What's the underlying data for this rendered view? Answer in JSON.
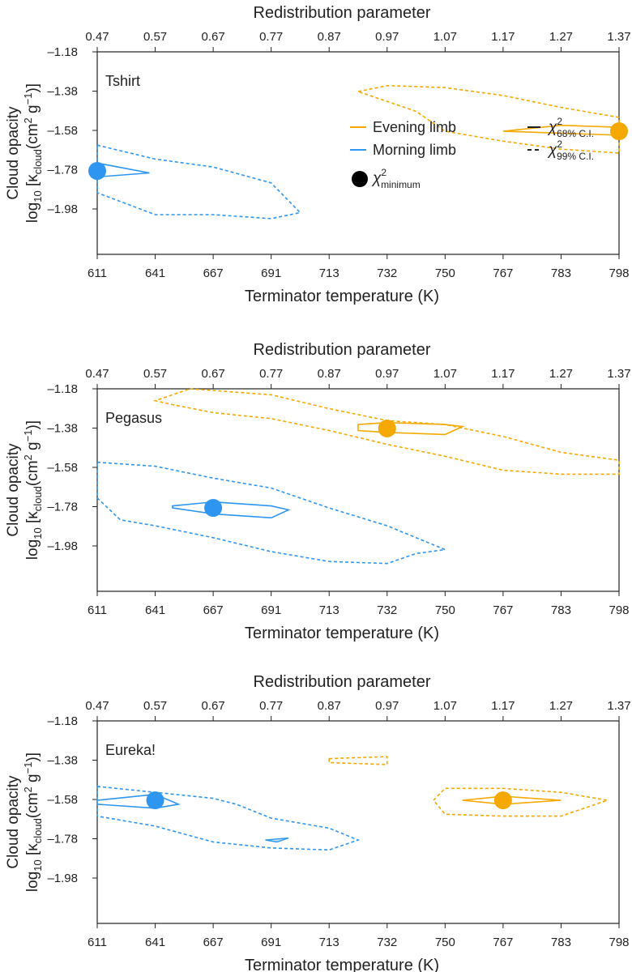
{
  "shared": {
    "top_axis_label": "Redistribution parameter",
    "top_ticks": [
      "0.47",
      "0.57",
      "0.67",
      "0.77",
      "0.87",
      "0.97",
      "1.07",
      "1.17",
      "1.27",
      "1.37"
    ],
    "bottom_axis_label": "Terminator temperature (K)",
    "bottom_ticks": [
      "611",
      "641",
      "667",
      "691",
      "713",
      "732",
      "750",
      "767",
      "783",
      "798"
    ],
    "y_ticks": [
      "-1.18",
      "-1.38",
      "-1.58",
      "-1.78",
      "-1.98"
    ],
    "y_label_line1": "Cloud opacity",
    "y_label_line2_prefix": "log",
    "y_label_line2_sub": "10",
    "y_label_line2_rest": "[κ",
    "y_label_cloud_sub": "cloud",
    "y_label_units": "(cm",
    "y_label_units_sup": "2",
    "y_label_units_g": " g",
    "y_label_units_sup2": "−1",
    "y_label_close": ")]"
  },
  "legend": {
    "evening": "Evening limb",
    "morning": "Morning limb",
    "minimum_symbol": "χ",
    "minimum_sup": "2",
    "minimum_sub": "minimum",
    "ci68_symbol": "χ",
    "ci68_sup": "2",
    "ci68_sub": "68% C.I.",
    "ci99_symbol": "χ",
    "ci99_sup": "2",
    "ci99_sub": "99% C.I."
  },
  "colors": {
    "evening": "#F5A800",
    "morning": "#2E96F0",
    "axis": "#222222"
  },
  "chart_data": [
    {
      "type": "contour",
      "title": "Tshirt",
      "x_range": [
        0.47,
        1.37
      ],
      "y_range": [
        -2.2,
        -1.18
      ],
      "evening": {
        "minimum": [
          1.37,
          -1.58
        ],
        "ci68": [
          [
            1.37,
            -1.56
          ],
          [
            1.27,
            -1.55
          ],
          [
            1.17,
            -1.58
          ],
          [
            1.37,
            -1.6
          ]
        ],
        "ci99": [
          [
            0.92,
            -1.38
          ],
          [
            0.97,
            -1.35
          ],
          [
            1.07,
            -1.36
          ],
          [
            1.17,
            -1.4
          ],
          [
            1.27,
            -1.46
          ],
          [
            1.37,
            -1.51
          ],
          [
            1.37,
            -1.69
          ],
          [
            1.27,
            -1.67
          ],
          [
            1.17,
            -1.63
          ],
          [
            1.07,
            -1.58
          ],
          [
            1.02,
            -1.48
          ]
        ]
      },
      "morning": {
        "minimum": [
          0.47,
          -1.78
        ],
        "ci68": [
          [
            0.47,
            -1.74
          ],
          [
            0.56,
            -1.79
          ],
          [
            0.47,
            -1.81
          ]
        ],
        "ci99": [
          [
            0.47,
            -1.65
          ],
          [
            0.57,
            -1.72
          ],
          [
            0.67,
            -1.76
          ],
          [
            0.77,
            -1.84
          ],
          [
            0.82,
            -1.99
          ],
          [
            0.77,
            -2.02
          ],
          [
            0.67,
            -2.0
          ],
          [
            0.57,
            -2.0
          ],
          [
            0.47,
            -1.89
          ]
        ]
      }
    },
    {
      "type": "contour",
      "title": "Pegasus",
      "x_range": [
        0.47,
        1.37
      ],
      "y_range": [
        -2.2,
        -1.18
      ],
      "evening": {
        "minimum": [
          0.97,
          -1.38
        ],
        "ci68": [
          [
            0.92,
            -1.36
          ],
          [
            0.97,
            -1.35
          ],
          [
            1.07,
            -1.36
          ],
          [
            1.1,
            -1.37
          ],
          [
            1.07,
            -1.41
          ],
          [
            0.97,
            -1.4
          ],
          [
            0.92,
            -1.39
          ]
        ],
        "ci99": [
          [
            0.63,
            -1.18
          ],
          [
            0.77,
            -1.21
          ],
          [
            0.87,
            -1.28
          ],
          [
            0.97,
            -1.34
          ],
          [
            1.07,
            -1.36
          ],
          [
            1.17,
            -1.42
          ],
          [
            1.27,
            -1.5
          ],
          [
            1.37,
            -1.54
          ],
          [
            1.37,
            -1.61
          ],
          [
            1.27,
            -1.61
          ],
          [
            1.17,
            -1.59
          ],
          [
            1.07,
            -1.52
          ],
          [
            0.97,
            -1.46
          ],
          [
            0.87,
            -1.39
          ],
          [
            0.77,
            -1.33
          ],
          [
            0.67,
            -1.3
          ],
          [
            0.6,
            -1.26
          ],
          [
            0.57,
            -1.24
          ]
        ]
      },
      "morning": {
        "minimum": [
          0.67,
          -1.78
        ],
        "ci68": [
          [
            0.6,
            -1.77
          ],
          [
            0.67,
            -1.75
          ],
          [
            0.77,
            -1.77
          ],
          [
            0.8,
            -1.79
          ],
          [
            0.77,
            -1.83
          ],
          [
            0.67,
            -1.81
          ],
          [
            0.6,
            -1.78
          ]
        ],
        "ci99": [
          [
            0.47,
            -1.55
          ],
          [
            0.57,
            -1.57
          ],
          [
            0.67,
            -1.63
          ],
          [
            0.77,
            -1.68
          ],
          [
            0.87,
            -1.78
          ],
          [
            0.97,
            -1.87
          ],
          [
            1.07,
            -1.99
          ],
          [
            1.02,
            -2.01
          ],
          [
            0.97,
            -2.06
          ],
          [
            0.87,
            -2.05
          ],
          [
            0.77,
            -2.0
          ],
          [
            0.67,
            -1.93
          ],
          [
            0.57,
            -1.87
          ],
          [
            0.51,
            -1.84
          ],
          [
            0.47,
            -1.73
          ]
        ]
      }
    },
    {
      "type": "contour",
      "title": "Eureka!",
      "x_range": [
        0.47,
        1.37
      ],
      "y_range": [
        -2.2,
        -1.18
      ],
      "evening": {
        "minimum": [
          1.17,
          -1.58
        ],
        "ci68": [
          [
            1.1,
            -1.58
          ],
          [
            1.17,
            -1.56
          ],
          [
            1.27,
            -1.58
          ],
          [
            1.17,
            -1.6
          ]
        ],
        "ci99": [
          [
            1.05,
            -1.58
          ],
          [
            1.07,
            -1.52
          ],
          [
            1.17,
            -1.52
          ],
          [
            1.27,
            -1.54
          ],
          [
            1.35,
            -1.58
          ],
          [
            1.27,
            -1.66
          ],
          [
            1.17,
            -1.66
          ],
          [
            1.07,
            -1.65
          ]
        ],
        "ci99_extra": [
          [
            0.87,
            -1.37
          ],
          [
            0.97,
            -1.36
          ],
          [
            0.97,
            -1.4
          ],
          [
            0.87,
            -1.39
          ]
        ]
      },
      "morning": {
        "minimum": [
          0.57,
          -1.58
        ],
        "ci68": [
          [
            0.47,
            -1.58
          ],
          [
            0.57,
            -1.55
          ],
          [
            0.61,
            -1.6
          ],
          [
            0.57,
            -1.62
          ],
          [
            0.47,
            -1.6
          ]
        ],
        "ci68_extra": [
          [
            0.76,
            -1.78
          ],
          [
            0.8,
            -1.77
          ],
          [
            0.78,
            -1.79
          ]
        ],
        "ci99": [
          [
            0.47,
            -1.51
          ],
          [
            0.57,
            -1.54
          ],
          [
            0.67,
            -1.57
          ],
          [
            0.71,
            -1.6
          ],
          [
            0.77,
            -1.67
          ],
          [
            0.87,
            -1.72
          ],
          [
            0.92,
            -1.78
          ],
          [
            0.87,
            -1.83
          ],
          [
            0.77,
            -1.82
          ],
          [
            0.67,
            -1.79
          ],
          [
            0.57,
            -1.71
          ],
          [
            0.47,
            -1.66
          ]
        ]
      }
    }
  ]
}
